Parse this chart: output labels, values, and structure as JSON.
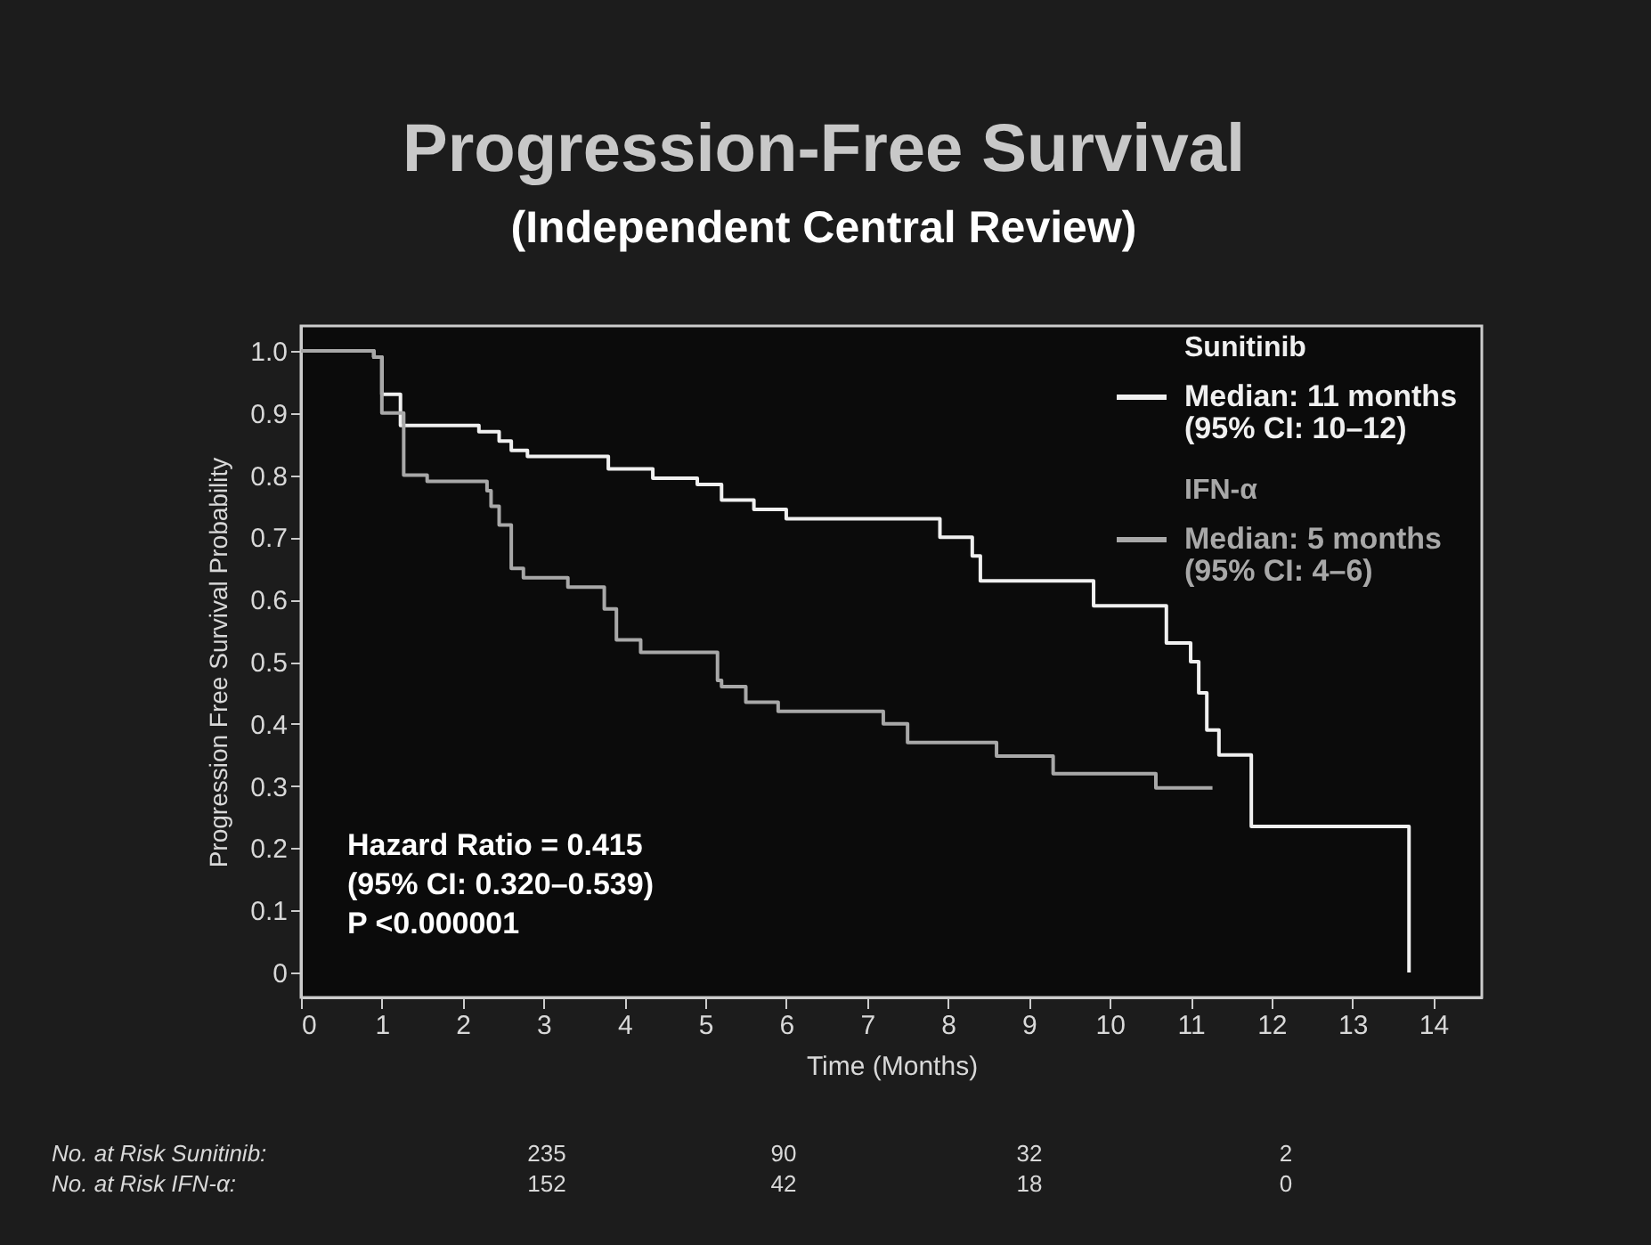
{
  "chart_data": {
    "type": "step",
    "title": "Progression-Free Survival",
    "subtitle": "(Independent Central Review)",
    "xlabel": "Time (Months)",
    "ylabel": "Progression Free Survival Probability",
    "xlim": [
      0,
      14.6
    ],
    "ylim": [
      -0.04,
      1.04
    ],
    "xticks": [
      0,
      1,
      2,
      3,
      4,
      5,
      6,
      7,
      8,
      9,
      10,
      11,
      12,
      13,
      14
    ],
    "yticks": [
      {
        "value": 1,
        "label": "1.0"
      },
      0.9,
      0.8,
      0.7,
      0.6,
      0.5,
      0.4,
      0.3,
      0.2,
      0.1,
      0
    ],
    "grid": false,
    "legend": "top right",
    "marker": "none",
    "line_style": "solid",
    "series": [
      {
        "name": "Sunitinib",
        "color": "#f0f0f0",
        "x": [
          0,
          0.9,
          1.0,
          1.23,
          2.2,
          2.45,
          2.6,
          2.8,
          3.8,
          4.35,
          4.9,
          5.2,
          5.6,
          6.0,
          7.9,
          8.3,
          8.4,
          9.8,
          10.7,
          11.0,
          11.1,
          11.2,
          11.35,
          11.75,
          13.7,
          13.7
        ],
        "values": [
          1.0,
          0.99,
          0.93,
          0.88,
          0.87,
          0.855,
          0.84,
          0.83,
          0.81,
          0.795,
          0.785,
          0.76,
          0.745,
          0.73,
          0.7,
          0.67,
          0.63,
          0.59,
          0.53,
          0.5,
          0.45,
          0.39,
          0.35,
          0.235,
          0.235,
          0
        ]
      },
      {
        "name": "IFN-α",
        "color": "#a8a8a8",
        "x": [
          0,
          0.9,
          1.0,
          1.27,
          1.56,
          2.3,
          2.35,
          2.45,
          2.6,
          2.75,
          3.3,
          3.75,
          3.9,
          4.2,
          5.15,
          5.2,
          5.5,
          5.9,
          7.2,
          7.5,
          8.6,
          9.3,
          10.57,
          11.27
        ],
        "values": [
          1.0,
          0.99,
          0.9,
          0.8,
          0.79,
          0.775,
          0.75,
          0.72,
          0.65,
          0.635,
          0.62,
          0.585,
          0.535,
          0.515,
          0.47,
          0.46,
          0.435,
          0.42,
          0.4,
          0.37,
          0.348,
          0.32,
          0.297,
          0.297
        ]
      }
    ],
    "annotations": [
      "Median: 11 months",
      "(95% CI: 10–12)",
      "Median: 5 months",
      "(95% CI: 4–6)",
      "Hazard Ratio = 0.415",
      "(95% CI: 0.320–0.539)",
      "P <0.000001",
      "No. at Risk Sunitinib:",
      "235",
      "90",
      "32",
      "2",
      "No. at Risk IFN-α:",
      "152",
      "42",
      "18",
      "0"
    ]
  }
}
